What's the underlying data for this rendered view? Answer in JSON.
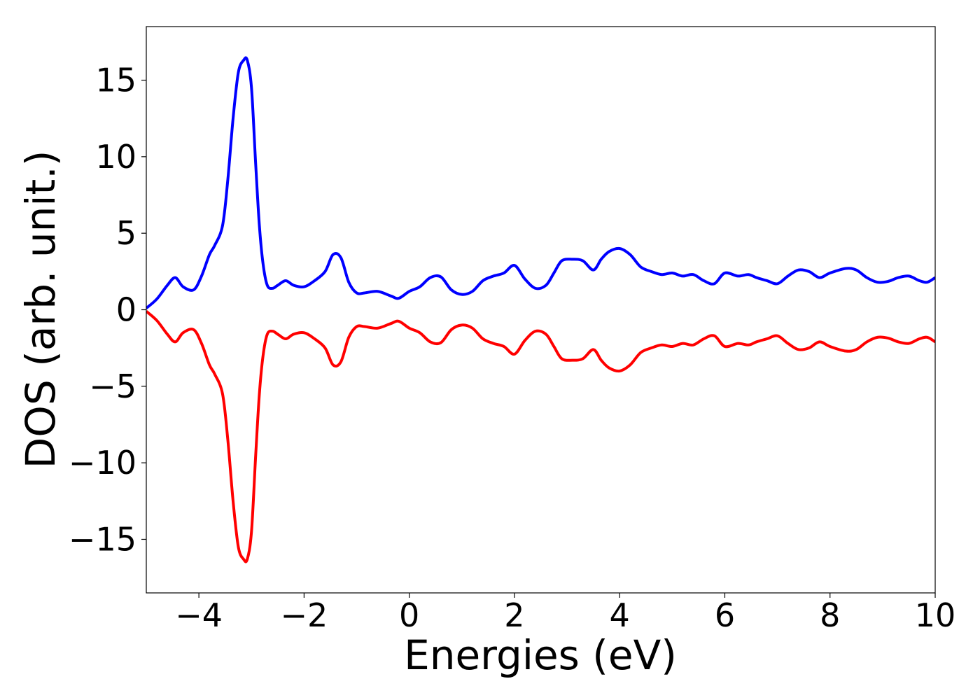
{
  "chart_data": {
    "type": "line",
    "title": "",
    "xlabel": "Energies (eV)",
    "ylabel": "DOS (arb. unit.)",
    "xlim": [
      -5,
      10
    ],
    "ylim": [
      -18.5,
      18.5
    ],
    "grid": false,
    "legend": "none",
    "x_ticks": [
      -4,
      -2,
      0,
      2,
      4,
      6,
      8,
      10
    ],
    "x_tick_labels": [
      "−4",
      "−2",
      "0",
      "2",
      "4",
      "6",
      "8",
      "10"
    ],
    "y_ticks": [
      -15,
      -10,
      -5,
      0,
      5,
      10,
      15
    ],
    "y_tick_labels": [
      "−15",
      "−10",
      "−5",
      "0",
      "5",
      "10",
      "15"
    ],
    "x": [
      -5.0,
      -4.8,
      -4.6,
      -4.45,
      -4.3,
      -4.1,
      -3.95,
      -3.8,
      -3.7,
      -3.55,
      -3.45,
      -3.35,
      -3.25,
      -3.15,
      -3.08,
      -3.0,
      -2.92,
      -2.85,
      -2.78,
      -2.7,
      -2.6,
      -2.5,
      -2.35,
      -2.2,
      -2.0,
      -1.8,
      -1.6,
      -1.45,
      -1.3,
      -1.15,
      -1.0,
      -0.85,
      -0.6,
      -0.35,
      -0.2,
      0.0,
      0.2,
      0.4,
      0.6,
      0.8,
      1.0,
      1.2,
      1.4,
      1.6,
      1.8,
      2.0,
      2.2,
      2.4,
      2.6,
      2.75,
      2.9,
      3.1,
      3.3,
      3.5,
      3.65,
      3.8,
      4.0,
      4.2,
      4.4,
      4.6,
      4.8,
      5.0,
      5.2,
      5.4,
      5.6,
      5.8,
      6.0,
      6.25,
      6.45,
      6.6,
      6.8,
      7.0,
      7.2,
      7.4,
      7.6,
      7.8,
      8.0,
      8.3,
      8.5,
      8.7,
      8.9,
      9.1,
      9.3,
      9.5,
      9.7,
      9.85,
      10.0
    ],
    "series": [
      {
        "color": "#0000ff",
        "values": [
          0.1,
          0.7,
          1.6,
          2.1,
          1.5,
          1.3,
          2.2,
          3.6,
          4.2,
          5.5,
          8.5,
          12.5,
          15.5,
          16.3,
          16.3,
          14.5,
          9.5,
          5.5,
          3.0,
          1.6,
          1.4,
          1.6,
          1.9,
          1.6,
          1.5,
          1.9,
          2.5,
          3.6,
          3.4,
          1.8,
          1.1,
          1.1,
          1.2,
          0.9,
          0.75,
          1.2,
          1.5,
          2.1,
          2.15,
          1.3,
          1.0,
          1.2,
          1.9,
          2.2,
          2.4,
          2.9,
          2.0,
          1.4,
          1.6,
          2.4,
          3.2,
          3.3,
          3.2,
          2.6,
          3.3,
          3.8,
          4.0,
          3.6,
          2.8,
          2.5,
          2.3,
          2.4,
          2.2,
          2.3,
          1.9,
          1.7,
          2.4,
          2.2,
          2.3,
          2.1,
          1.9,
          1.7,
          2.2,
          2.6,
          2.5,
          2.1,
          2.4,
          2.7,
          2.6,
          2.1,
          1.8,
          1.85,
          2.1,
          2.2,
          1.9,
          1.8,
          2.1
        ]
      },
      {
        "color": "#ff0000",
        "values": [
          -0.1,
          -0.7,
          -1.6,
          -2.1,
          -1.5,
          -1.3,
          -2.2,
          -3.6,
          -4.2,
          -5.5,
          -8.5,
          -12.5,
          -15.5,
          -16.3,
          -16.3,
          -14.5,
          -9.5,
          -5.5,
          -3.0,
          -1.6,
          -1.4,
          -1.6,
          -1.9,
          -1.6,
          -1.5,
          -1.9,
          -2.5,
          -3.6,
          -3.4,
          -1.8,
          -1.1,
          -1.1,
          -1.2,
          -0.9,
          -0.75,
          -1.2,
          -1.5,
          -2.1,
          -2.15,
          -1.3,
          -1.0,
          -1.2,
          -1.9,
          -2.2,
          -2.4,
          -2.9,
          -2.0,
          -1.4,
          -1.6,
          -2.4,
          -3.2,
          -3.3,
          -3.2,
          -2.6,
          -3.3,
          -3.8,
          -4.0,
          -3.6,
          -2.8,
          -2.5,
          -2.3,
          -2.4,
          -2.2,
          -2.3,
          -1.9,
          -1.7,
          -2.4,
          -2.2,
          -2.3,
          -2.1,
          -1.9,
          -1.7,
          -2.2,
          -2.6,
          -2.5,
          -2.1,
          -2.4,
          -2.7,
          -2.6,
          -2.1,
          -1.8,
          -1.85,
          -2.1,
          -2.2,
          -1.9,
          -1.8,
          -2.1
        ]
      }
    ]
  }
}
